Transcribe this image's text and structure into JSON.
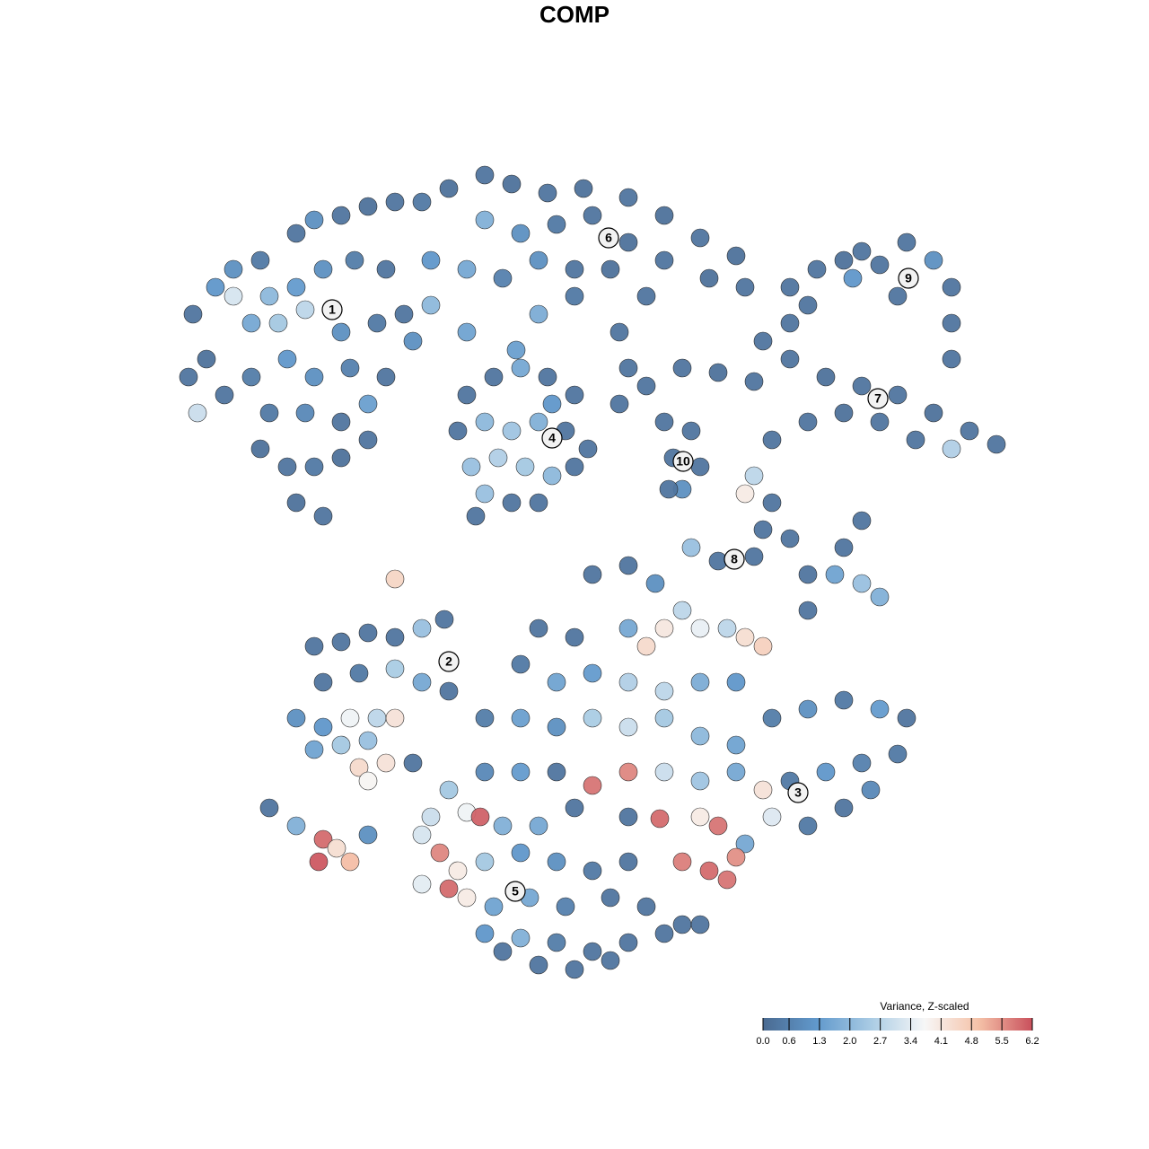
{
  "chart_data": {
    "type": "scatter",
    "title": "COMP",
    "xlim": [
      0,
      128
    ],
    "ylim": [
      0,
      128
    ],
    "colorscale": [
      "#4a6a91",
      "#6199cc",
      "#a9cbe4",
      "#f7f7f7",
      "#f5c2a8",
      "#c9505c"
    ],
    "colorbar": {
      "title": "Variance, Z-scaled",
      "lim": [
        0,
        6.2
      ],
      "ticks": [
        {
          "value": 0,
          "label": "0.0"
        },
        0.6,
        1.3,
        {
          "value": 2,
          "label": "2.0"
        },
        2.7,
        3.4,
        4.1,
        4.8,
        5.5,
        6.2
      ]
    },
    "cluster_labels": {
      "labels": [
        1,
        2,
        3,
        4,
        5,
        6,
        7,
        8,
        9,
        10
      ],
      "x": [
        37,
        50,
        88.9,
        61.5,
        57.4,
        67.8,
        97.8,
        81.8,
        101.2,
        76.1
      ],
      "y": [
        93.5,
        54.3,
        39.7,
        79.2,
        28.7,
        101.5,
        83.6,
        65.7,
        97,
        76.6
      ]
    },
    "x": [
      21.5,
      24,
      26,
      29,
      33,
      35,
      38,
      41,
      44,
      47,
      30,
      33,
      36,
      39.5,
      43,
      28,
      31,
      34,
      38,
      42,
      45,
      23,
      21,
      22,
      25,
      28,
      32,
      35,
      39,
      43,
      30,
      34,
      38,
      41,
      29,
      32,
      35,
      38,
      33,
      36,
      41,
      26,
      50,
      54,
      57,
      61,
      65,
      70,
      74,
      78,
      82,
      54,
      58,
      62,
      66,
      70,
      74,
      79,
      83,
      48,
      52,
      56,
      60,
      64,
      68,
      72,
      48,
      52,
      60,
      64,
      69,
      70,
      46,
      57.5,
      52,
      55,
      58,
      61,
      64,
      51,
      54,
      57,
      60,
      63,
      65.5,
      52.5,
      55.5,
      58.5,
      61.5,
      64,
      54,
      57,
      60,
      53,
      61.5,
      74,
      77,
      75,
      78,
      76,
      74.5,
      69,
      72,
      76,
      80,
      84,
      88,
      92,
      96,
      100,
      104,
      108,
      111,
      106,
      102,
      98,
      94,
      90,
      86,
      88,
      85,
      88,
      91,
      94,
      98,
      101,
      104,
      106,
      106,
      106,
      95,
      100,
      90,
      96,
      84,
      86,
      85,
      88,
      90,
      90,
      93,
      96,
      98,
      94,
      96,
      77,
      80,
      84,
      83,
      35,
      38,
      41,
      44,
      47,
      49.5,
      36,
      40,
      44,
      47,
      50,
      33,
      36,
      39,
      42,
      44,
      35,
      38,
      41,
      40,
      43,
      41,
      30,
      33,
      36,
      35.5,
      37.5,
      39,
      41,
      46,
      44,
      66,
      70,
      73,
      76,
      74,
      72,
      70,
      78,
      81,
      83,
      85,
      60,
      64,
      58,
      62,
      66,
      70,
      74,
      78,
      82,
      54,
      58,
      62,
      66,
      70,
      74,
      78,
      82,
      86,
      90,
      94,
      98,
      101,
      100,
      96,
      92,
      88,
      85,
      82,
      78,
      74,
      70,
      66,
      62,
      58,
      54,
      50,
      48,
      52,
      53.5,
      56,
      60,
      64,
      70,
      73.5,
      78,
      80,
      83,
      86,
      90,
      94,
      97,
      49,
      51,
      54,
      58,
      62,
      66,
      70,
      76,
      79,
      81,
      82,
      50,
      52,
      55,
      59,
      63,
      68,
      72,
      76,
      54,
      58,
      62,
      66,
      70,
      74,
      60,
      64,
      68,
      56,
      47,
      47,
      78
    ],
    "y": [
      93,
      96,
      98,
      99,
      102,
      103.5,
      104,
      105,
      105.5,
      105.5,
      95,
      96,
      98,
      99,
      98,
      92,
      92,
      93.5,
      91,
      92,
      93,
      88,
      86,
      82,
      84,
      86,
      88,
      86,
      87,
      86,
      82,
      82,
      81,
      83,
      78,
      76,
      76,
      77,
      72,
      70.5,
      79,
      95,
      107,
      108.5,
      107.5,
      106.5,
      107,
      106,
      104,
      101.5,
      99.5,
      103.5,
      102,
      103,
      104,
      101,
      99,
      97,
      96,
      99,
      98,
      97,
      99,
      98,
      98,
      95,
      94,
      91,
      93,
      95,
      91,
      87,
      90,
      89,
      84,
      86,
      87,
      86,
      84,
      80,
      81,
      80,
      81,
      80,
      78,
      76,
      77,
      76,
      75,
      76,
      73,
      72,
      72,
      70.5,
      83,
      81,
      80,
      77,
      76,
      73.5,
      73.5,
      83,
      85,
      87,
      86.5,
      85.5,
      88,
      86,
      85,
      84,
      82,
      80,
      78.5,
      78,
      79,
      81,
      82,
      81,
      79,
      92,
      90,
      96,
      98,
      99,
      98.5,
      101,
      99,
      96,
      92,
      88,
      97,
      95,
      94,
      100,
      75,
      72,
      69,
      68,
      64,
      60,
      64,
      63,
      61.5,
      67,
      70,
      67,
      65.5,
      66,
      73,
      56,
      56.5,
      57.5,
      57,
      58,
      59,
      52,
      53,
      53.5,
      52,
      51,
      48,
      47,
      48,
      48,
      48,
      44.5,
      45,
      45.5,
      42.5,
      43,
      41,
      38,
      36,
      34.5,
      32,
      33.5,
      32,
      35,
      43,
      63.5,
      64,
      65,
      63,
      60,
      58,
      56,
      58,
      58,
      58,
      57,
      56,
      58,
      57,
      54,
      52,
      53,
      52,
      51,
      52,
      52,
      48,
      48,
      47,
      48,
      47,
      48,
      46,
      45,
      48,
      49,
      50,
      49,
      48,
      44,
      43,
      42,
      41,
      40,
      42,
      41,
      42,
      42,
      40.5,
      42,
      42,
      42,
      40,
      37,
      37.5,
      37,
      36,
      36,
      38,
      37,
      36.8,
      37,
      36,
      34,
      37,
      36,
      38,
      40,
      33,
      31,
      32,
      33,
      32,
      31,
      32,
      32,
      31,
      30,
      32.5,
      29,
      28,
      27,
      28,
      27,
      28,
      27,
      25,
      24,
      23.5,
      23,
      22,
      23,
      24,
      20.5,
      20,
      21,
      22,
      35,
      29.5,
      25
    ],
    "values": [
      0.3,
      1.2,
      1.0,
      0.4,
      0.3,
      1.0,
      0.3,
      0.2,
      0.3,
      0.4,
      2.0,
      1.3,
      1.0,
      0.5,
      0.3,
      1.6,
      2.4,
      2.8,
      1.0,
      0.4,
      0.3,
      0.2,
      0.3,
      3.0,
      0.3,
      0.5,
      1.2,
      1.0,
      0.6,
      0.3,
      0.4,
      0.8,
      0.3,
      1.4,
      0.2,
      0.3,
      0.4,
      0.2,
      0.2,
      0.3,
      0.3,
      3.2,
      0.2,
      0.3,
      0.2,
      0.3,
      0.2,
      0.3,
      0.2,
      0.3,
      0.2,
      1.8,
      1.0,
      0.4,
      0.3,
      0.2,
      0.3,
      0.2,
      0.3,
      1.2,
      1.6,
      0.6,
      1.0,
      0.3,
      0.2,
      0.3,
      2.0,
      1.5,
      1.7,
      0.4,
      0.3,
      0.3,
      1.0,
      1.4,
      0.3,
      0.3,
      1.6,
      0.3,
      0.3,
      0.3,
      2.0,
      2.3,
      1.8,
      0.3,
      0.3,
      2.2,
      2.6,
      2.4,
      2.0,
      0.3,
      2.2,
      0.3,
      0.3,
      0.3,
      1.2,
      0.3,
      0.3,
      0.3,
      0.3,
      1.0,
      0.3,
      0.3,
      0.3,
      0.3,
      0.2,
      0.3,
      0.3,
      0.2,
      0.3,
      0.3,
      0.2,
      0.3,
      0.3,
      2.6,
      0.3,
      0.3,
      0.2,
      0.3,
      0.3,
      0.3,
      0.3,
      0.3,
      0.3,
      0.2,
      0.3,
      0.3,
      1.0,
      0.3,
      0.3,
      0.3,
      1.2,
      0.3,
      0.3,
      0.3,
      2.8,
      0.3,
      0.3,
      0.3,
      0.3,
      0.3,
      1.5,
      2.2,
      1.8,
      0.3,
      0.3,
      2.2,
      0.3,
      0.3,
      4.0,
      0.3,
      0.3,
      0.3,
      0.3,
      2.2,
      0.3,
      0.3,
      0.4,
      2.5,
      1.6,
      0.3,
      1.0,
      1.2,
      3.6,
      2.8,
      4.2,
      1.5,
      2.4,
      2.2,
      4.4,
      4.2,
      3.8,
      0.3,
      1.8,
      5.9,
      6.1,
      4.3,
      5.0,
      1.0,
      0.3,
      4.5,
      0.3,
      0.3,
      1.0,
      2.8,
      4.1,
      4.4,
      1.6,
      3.5,
      2.8,
      4.3,
      4.6,
      0.3,
      0.3,
      0.4,
      1.5,
      1.3,
      2.6,
      2.8,
      1.7,
      1.2,
      0.5,
      1.4,
      1.0,
      2.5,
      3.0,
      2.4,
      2.0,
      1.5,
      0.5,
      1.0,
      0.4,
      1.3,
      0.3,
      0.4,
      0.6,
      1.2,
      0.4,
      4.2,
      1.6,
      2.3,
      3.0,
      5.6,
      5.8,
      0.3,
      1.3,
      0.8,
      2.4,
      3.0,
      3.6,
      6.0,
      1.8,
      1.6,
      0.3,
      0.3,
      5.9,
      4.0,
      5.8,
      1.6,
      3.3,
      0.4,
      0.3,
      0.8,
      5.6,
      4.0,
      2.4,
      1.2,
      1.0,
      0.4,
      0.3,
      5.7,
      5.9,
      5.8,
      5.5,
      5.9,
      4.0,
      1.5,
      1.6,
      0.6,
      0.3,
      0.3,
      0.3,
      1.2,
      1.8,
      0.5,
      0.3,
      0.3,
      0.3,
      0.3,
      0.3,
      0.3,
      0.3,
      3.2,
      3.4,
      0.3
    ]
  }
}
